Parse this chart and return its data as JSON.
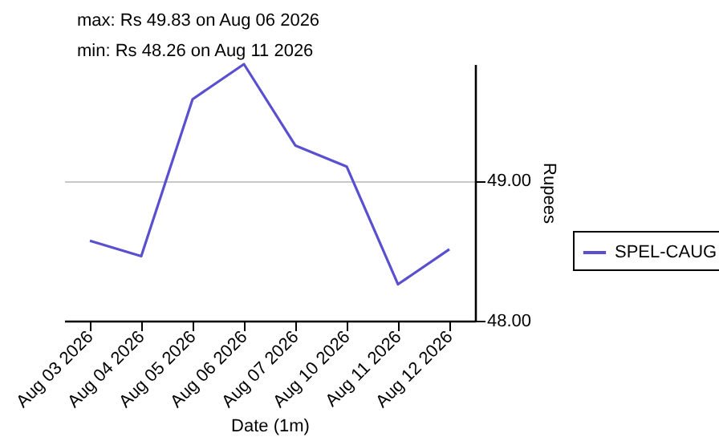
{
  "chart_data": {
    "type": "line",
    "xlabel": "Date (1m)",
    "ylabel": "Rupees",
    "annotations": [
      "max: Rs 49.83 on Aug 06 2026",
      "min: Rs 48.26 on Aug 11 2026"
    ],
    "categories": [
      "Aug 03 2026",
      "Aug 04 2026",
      "Aug 05 2026",
      "Aug 06 2026",
      "Aug 07 2026",
      "Aug 10 2026",
      "Aug 11 2026",
      "Aug 12 2026"
    ],
    "series": [
      {
        "name": "SPEL-CAUG",
        "color": "#5a4fcf",
        "values": [
          48.57,
          48.46,
          49.58,
          49.83,
          49.25,
          49.1,
          48.26,
          48.51
        ]
      }
    ],
    "ylim": [
      48,
      49.83
    ],
    "yticks": [
      {
        "value": 48,
        "label": "48.00"
      },
      {
        "value": 49,
        "label": "49.00"
      }
    ],
    "grid": "y",
    "legend": "right"
  }
}
